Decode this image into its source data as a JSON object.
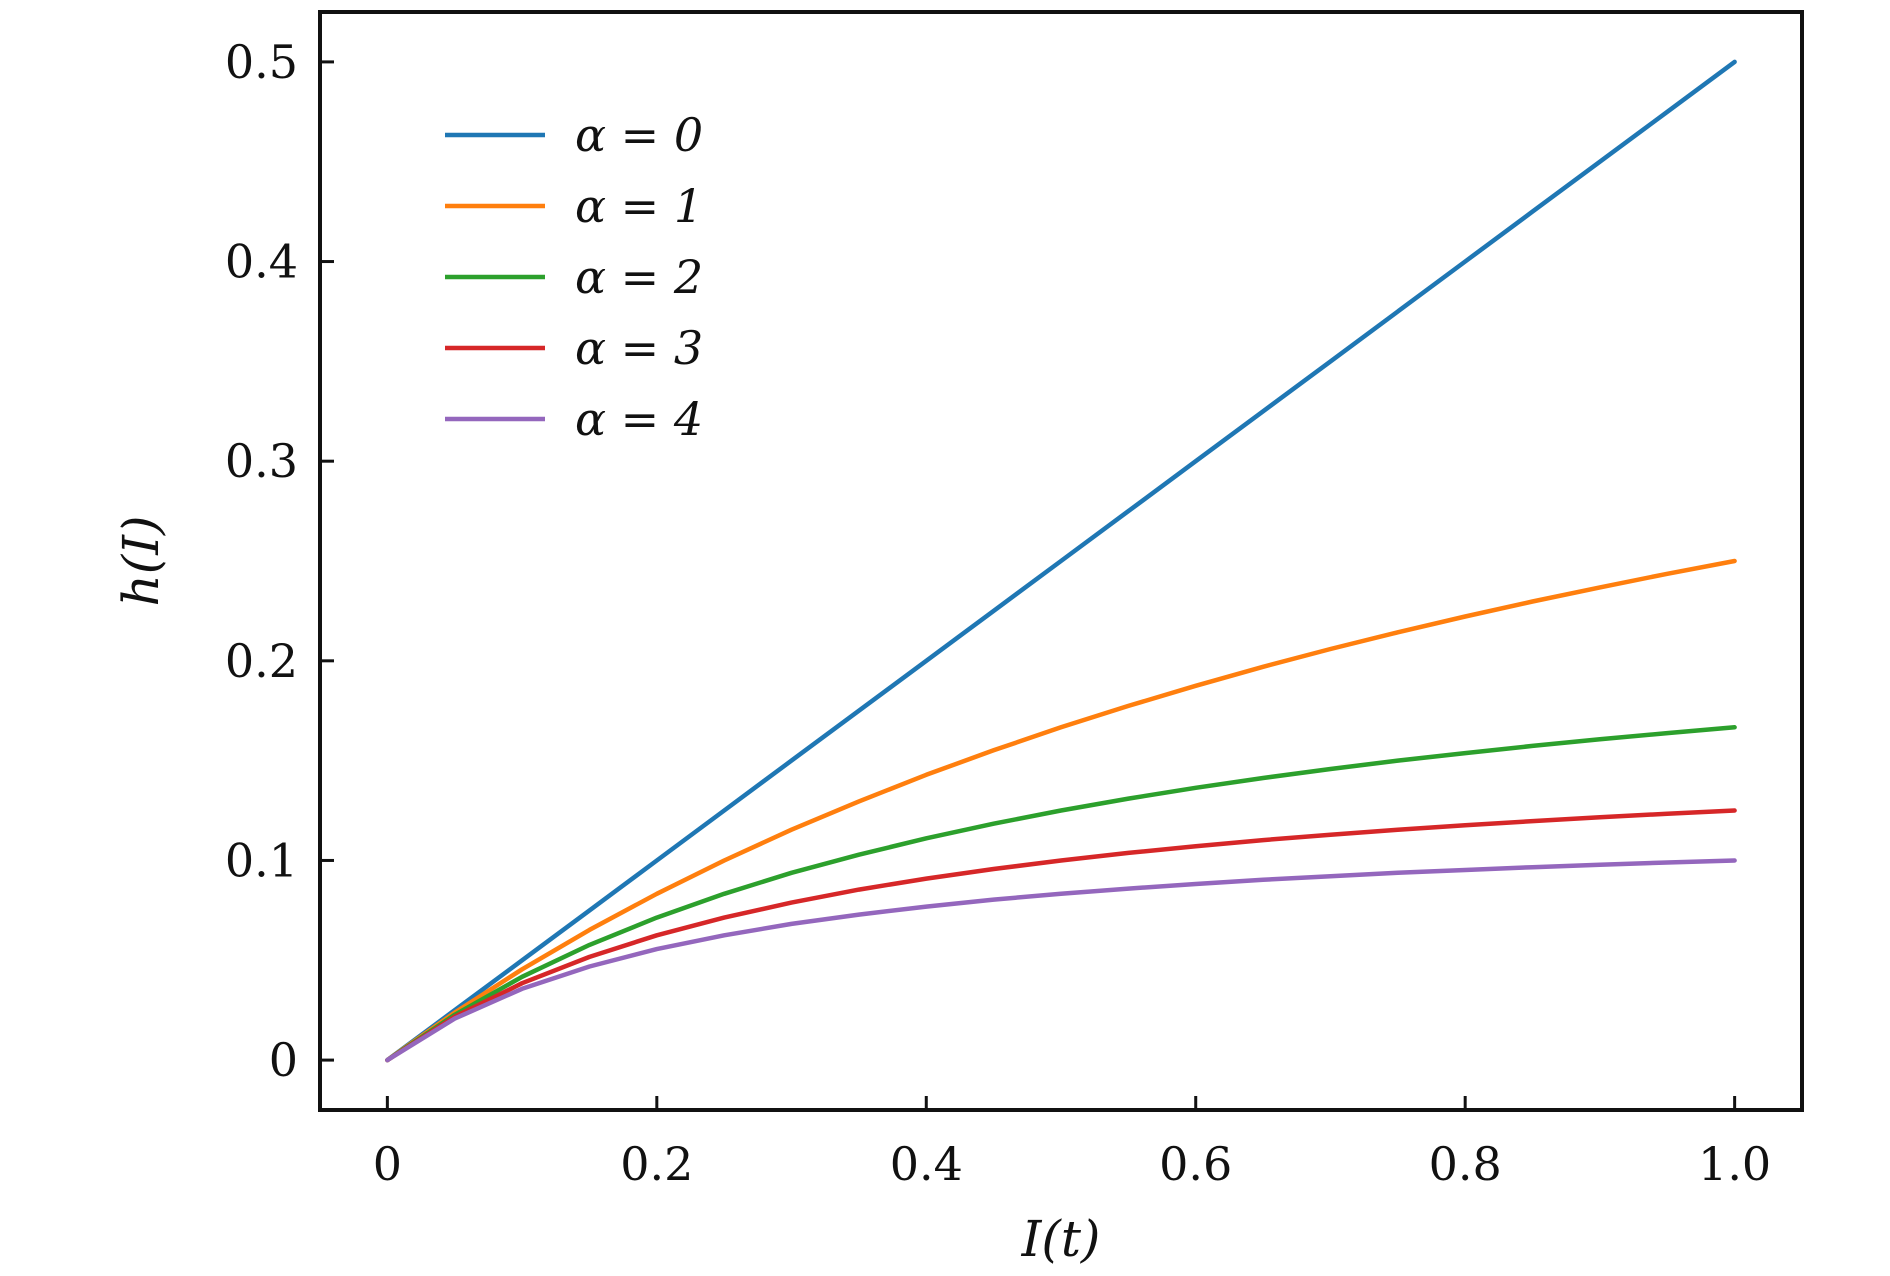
{
  "chart_data": {
    "type": "line",
    "xlabel": "I(t)",
    "ylabel": "h(I)",
    "xlim": [
      -0.05,
      1.05
    ],
    "ylim": [
      -0.025,
      0.525
    ],
    "x_ticks": [
      0,
      0.2,
      0.4,
      0.6,
      0.8,
      1.0
    ],
    "x_tick_labels": [
      "0",
      "0.2",
      "0.4",
      "0.6",
      "0.8",
      "1.0"
    ],
    "y_ticks": [
      0,
      0.1,
      0.2,
      0.3,
      0.4,
      0.5
    ],
    "y_tick_labels": [
      "0",
      "0.1",
      "0.2",
      "0.3",
      "0.4",
      "0.5"
    ],
    "grid": false,
    "legend_position": "top-left",
    "x": [
      0,
      0.05,
      0.1,
      0.15,
      0.2,
      0.25,
      0.3,
      0.35,
      0.4,
      0.45,
      0.5,
      0.55,
      0.6,
      0.65,
      0.7,
      0.75,
      0.8,
      0.85,
      0.9,
      0.95,
      1.0
    ],
    "series": [
      {
        "name": "α = 0",
        "color": "#1f77b4",
        "values": [
          0,
          0.025,
          0.05,
          0.075,
          0.1,
          0.125,
          0.15,
          0.175,
          0.2,
          0.225,
          0.25,
          0.275,
          0.3,
          0.325,
          0.35,
          0.375,
          0.4,
          0.425,
          0.45,
          0.475,
          0.5
        ]
      },
      {
        "name": "α = 1",
        "color": "#ff7f0e",
        "values": [
          0,
          0.0238,
          0.0455,
          0.0652,
          0.0833,
          0.1,
          0.1154,
          0.1296,
          0.1429,
          0.1552,
          0.1667,
          0.1774,
          0.1875,
          0.197,
          0.2059,
          0.2143,
          0.2222,
          0.2297,
          0.2368,
          0.2436,
          0.25
        ]
      },
      {
        "name": "α = 2",
        "color": "#2ca02c",
        "values": [
          0,
          0.0227,
          0.0417,
          0.0577,
          0.0714,
          0.0833,
          0.0938,
          0.1029,
          0.1111,
          0.1184,
          0.125,
          0.131,
          0.1364,
          0.1413,
          0.1458,
          0.15,
          0.1538,
          0.1574,
          0.1607,
          0.1638,
          0.1667
        ]
      },
      {
        "name": "α = 3",
        "color": "#d62728",
        "values": [
          0,
          0.0217,
          0.0385,
          0.0517,
          0.0625,
          0.0714,
          0.0789,
          0.0854,
          0.0909,
          0.0957,
          0.1,
          0.1038,
          0.1071,
          0.1102,
          0.1129,
          0.1154,
          0.1176,
          0.1197,
          0.1216,
          0.1234,
          0.125
        ]
      },
      {
        "name": "α = 4",
        "color": "#9467bd",
        "values": [
          0,
          0.0208,
          0.0357,
          0.0469,
          0.0556,
          0.0625,
          0.0682,
          0.0729,
          0.0769,
          0.0804,
          0.0833,
          0.0859,
          0.0882,
          0.0903,
          0.0921,
          0.0938,
          0.0952,
          0.0966,
          0.0978,
          0.099,
          0.1
        ]
      }
    ]
  }
}
